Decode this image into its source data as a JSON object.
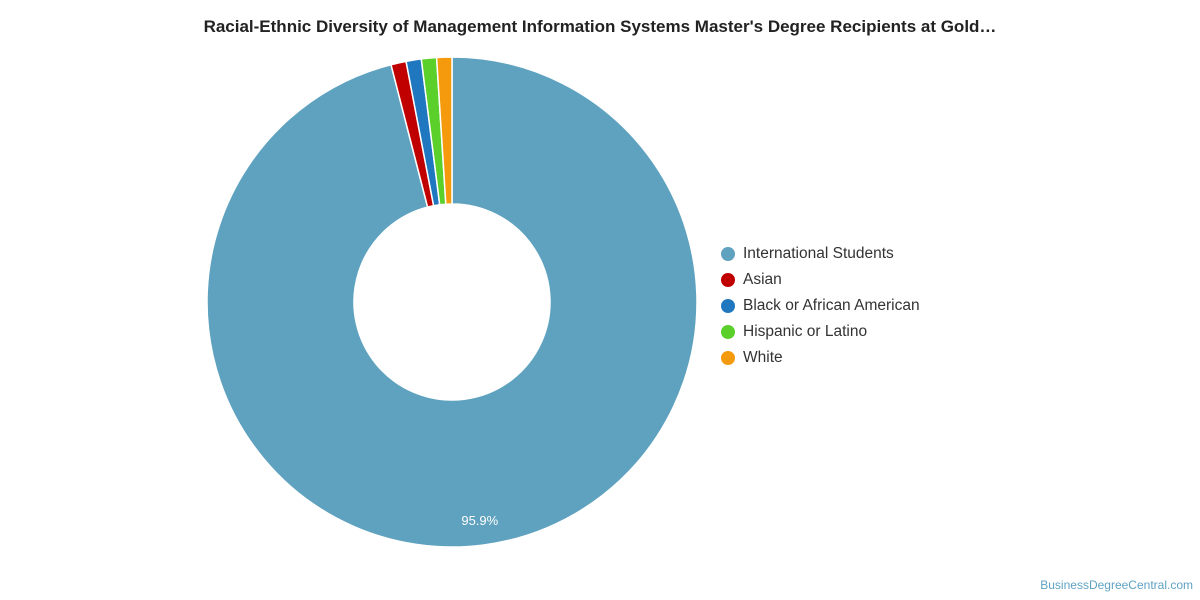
{
  "chart_data": {
    "type": "pie",
    "donut": true,
    "title": "Racial-Ethnic Diversity of Management Information Systems Master's Degree Recipients at Gold…",
    "slices": [
      {
        "label": "International Students",
        "value": 95.9,
        "color": "#5fa2bf",
        "data_label": "95.9%"
      },
      {
        "label": "Asian",
        "value": 1.0,
        "color": "#c00000"
      },
      {
        "label": "Black or African American",
        "value": 1.0,
        "color": "#1f77c0"
      },
      {
        "label": "Hispanic or Latino",
        "value": 1.0,
        "color": "#5cd02a"
      },
      {
        "label": "White",
        "value": 1.0,
        "color": "#f59a0c"
      }
    ],
    "legend_position": "right"
  },
  "credit": "BusinessDegreeCentral.com"
}
